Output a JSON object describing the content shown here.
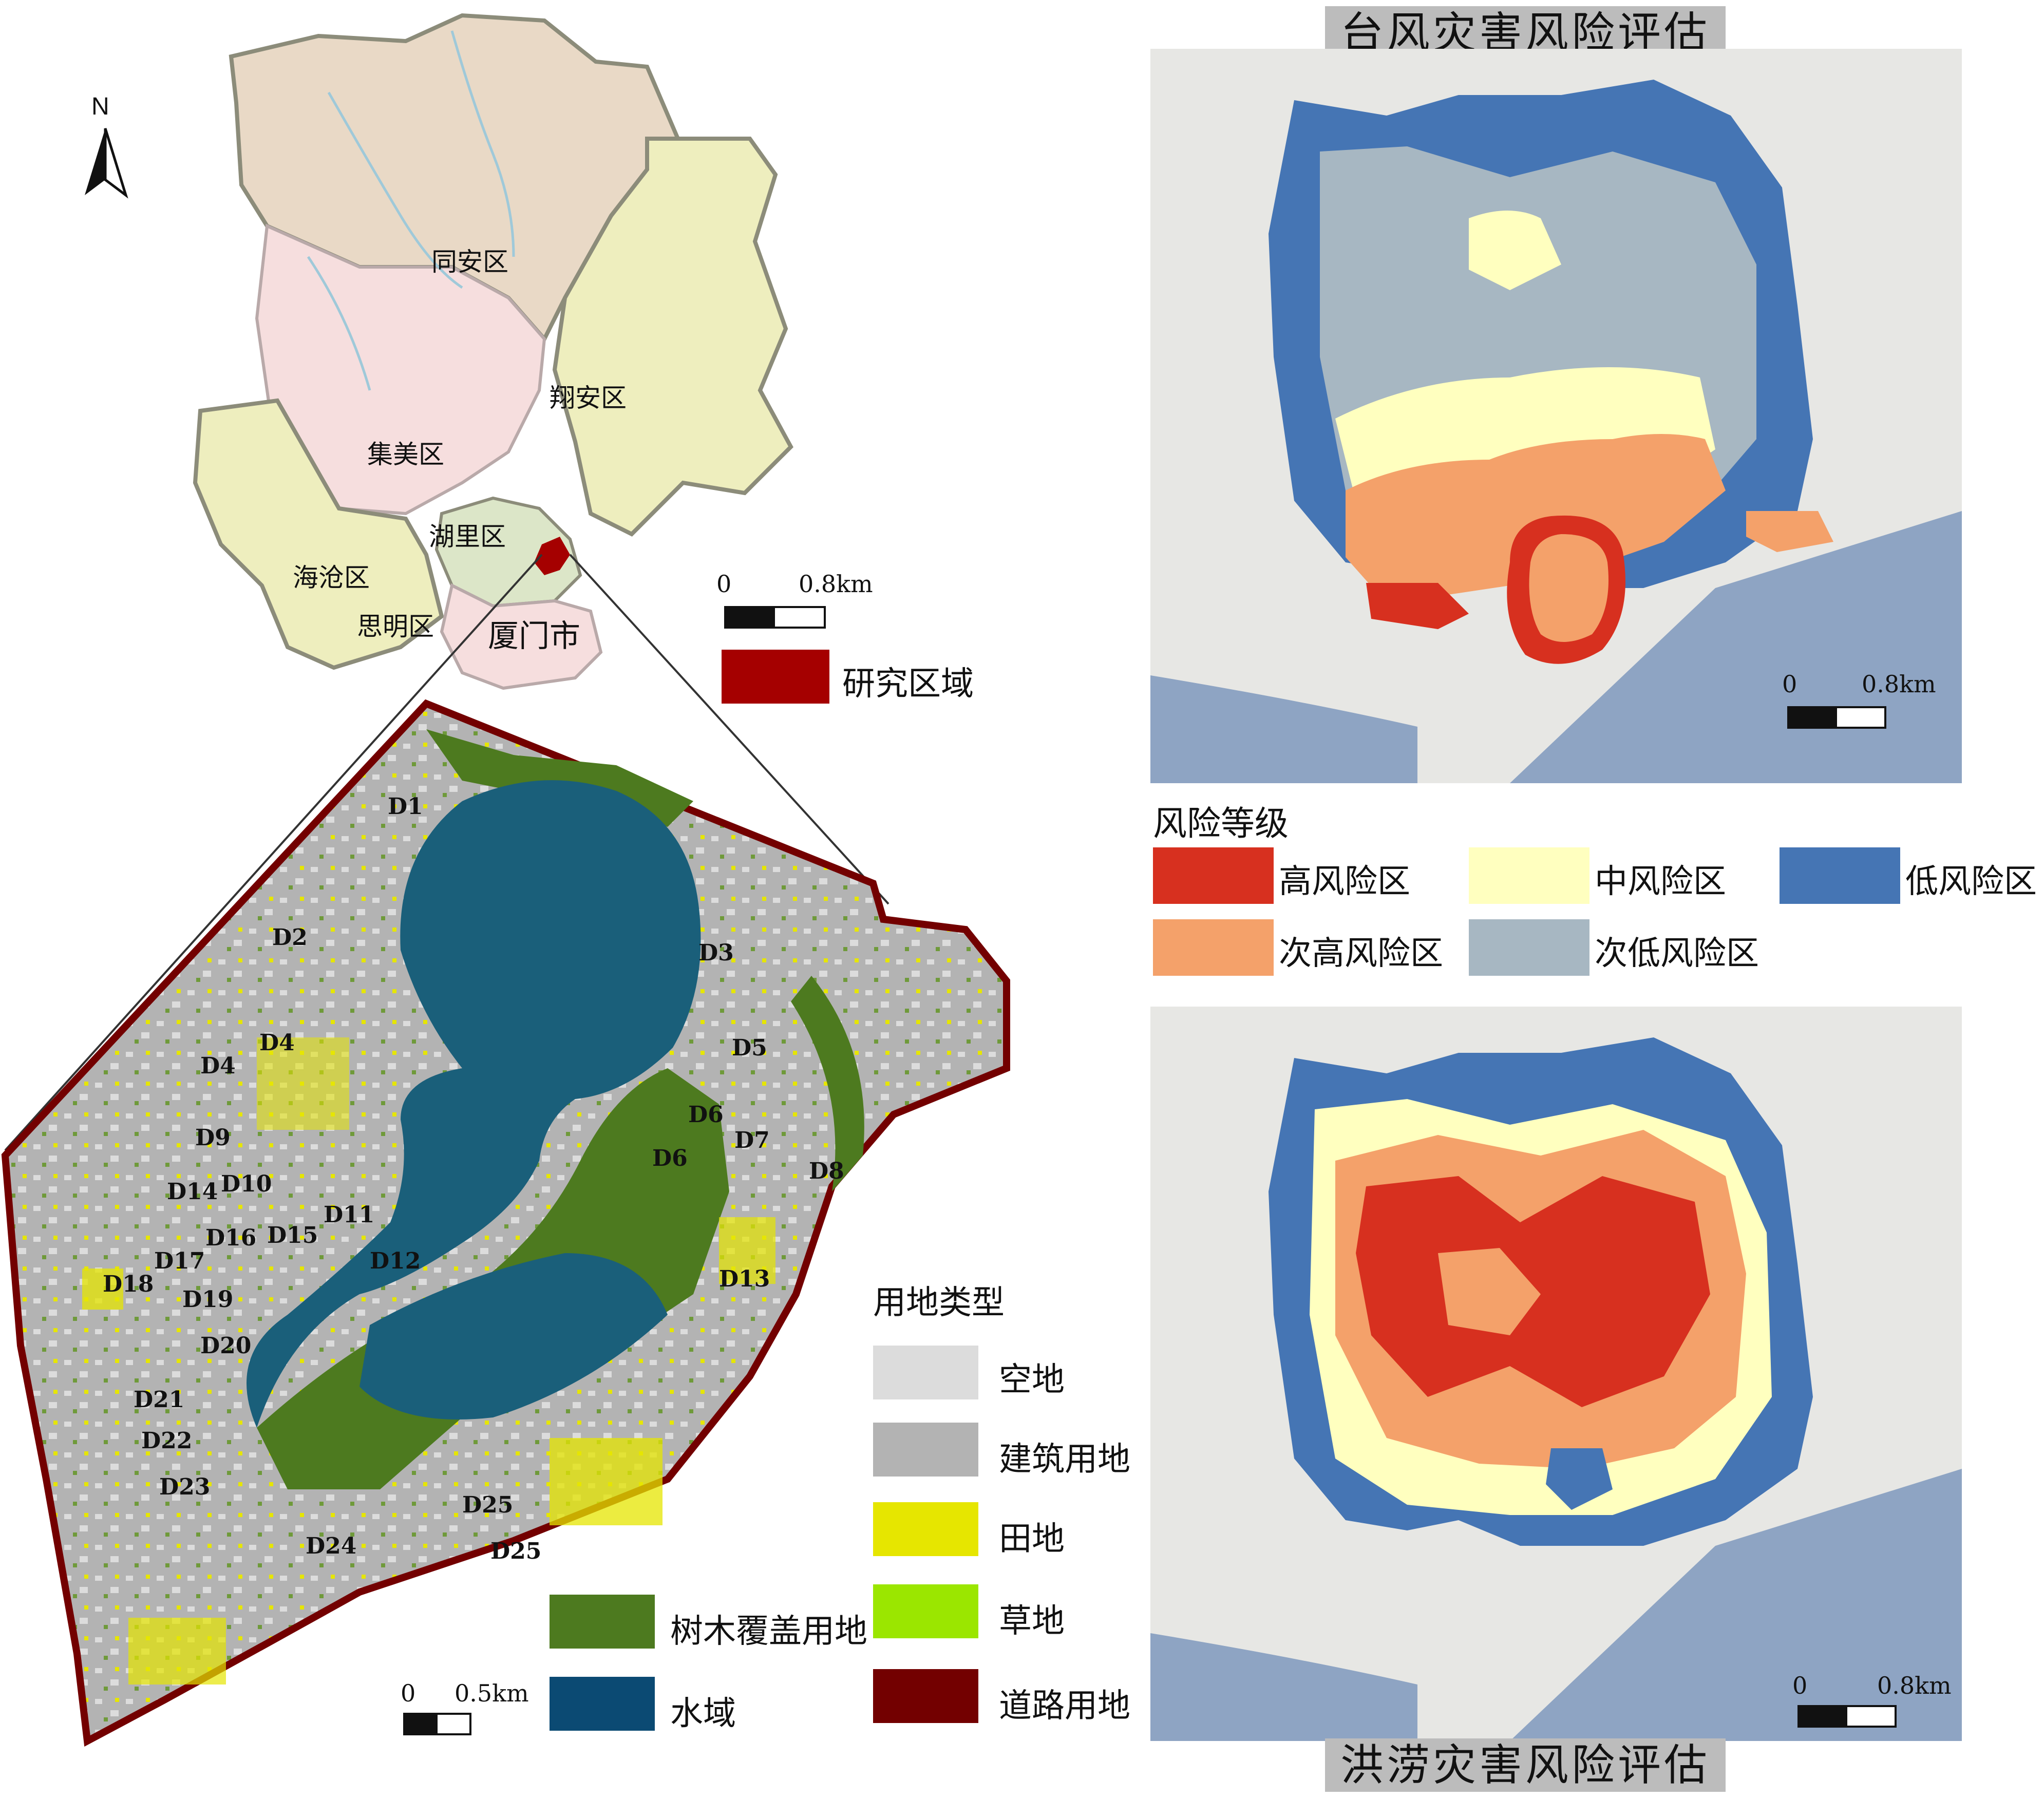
{
  "overview_map": {
    "districts": [
      "同安区",
      "翔安区",
      "集美区",
      "湖里区",
      "海沧区",
      "思明区"
    ],
    "city": "厦门市",
    "north_label": "N",
    "scale": {
      "start": "0",
      "end": "0.8km"
    },
    "legend_study_area": "研究区域",
    "colors": {
      "tongan": "#e9d9c6",
      "jimei": "#f6dede",
      "haicang": "#eeeebe",
      "huli": "#dce6c8",
      "siming": "#f6dede",
      "study": "#a50000"
    }
  },
  "landuse_map": {
    "legend_title": "用地类型",
    "legend": [
      {
        "label": "空地",
        "color": "#dcdcdc"
      },
      {
        "label": "建筑用地",
        "color": "#b3b3b3"
      },
      {
        "label": "田地",
        "color": "#e6e600"
      },
      {
        "label": "草地",
        "color": "#9be600"
      },
      {
        "label": "道路用地",
        "color": "#730000"
      },
      {
        "label": "树木覆盖用地",
        "color": "#4d7a1f"
      },
      {
        "label": "水域",
        "color": "#0b4a73"
      }
    ],
    "scale": {
      "start": "0",
      "end": "0.5km"
    },
    "plot_labels": [
      "D1",
      "D2",
      "D3",
      "D4",
      "D4",
      "D5",
      "D6",
      "D6",
      "D7",
      "D8",
      "D9",
      "D10",
      "D11",
      "D12",
      "D13",
      "D14",
      "D15",
      "D16",
      "D17",
      "D18",
      "D19",
      "D20",
      "D21",
      "D22",
      "D23",
      "D24",
      "D25",
      "D25"
    ]
  },
  "typhoon_map": {
    "title": "台风灾害风险评估",
    "scale": {
      "start": "0",
      "end": "0.8km"
    }
  },
  "risk_legend": {
    "title": "风险等级",
    "items": [
      {
        "label": "高风险区",
        "color": "#d7301f"
      },
      {
        "label": "中风险区",
        "color": "#ffffbf"
      },
      {
        "label": "低风险区",
        "color": "#4575b4"
      },
      {
        "label": "次高风险区",
        "color": "#f4a16a"
      },
      {
        "label": "次低风险区",
        "color": "#a7b7c2"
      }
    ]
  },
  "flood_map": {
    "title": "洪涝灾害风险评估",
    "scale": {
      "start": "0",
      "end": "0.8km"
    }
  }
}
